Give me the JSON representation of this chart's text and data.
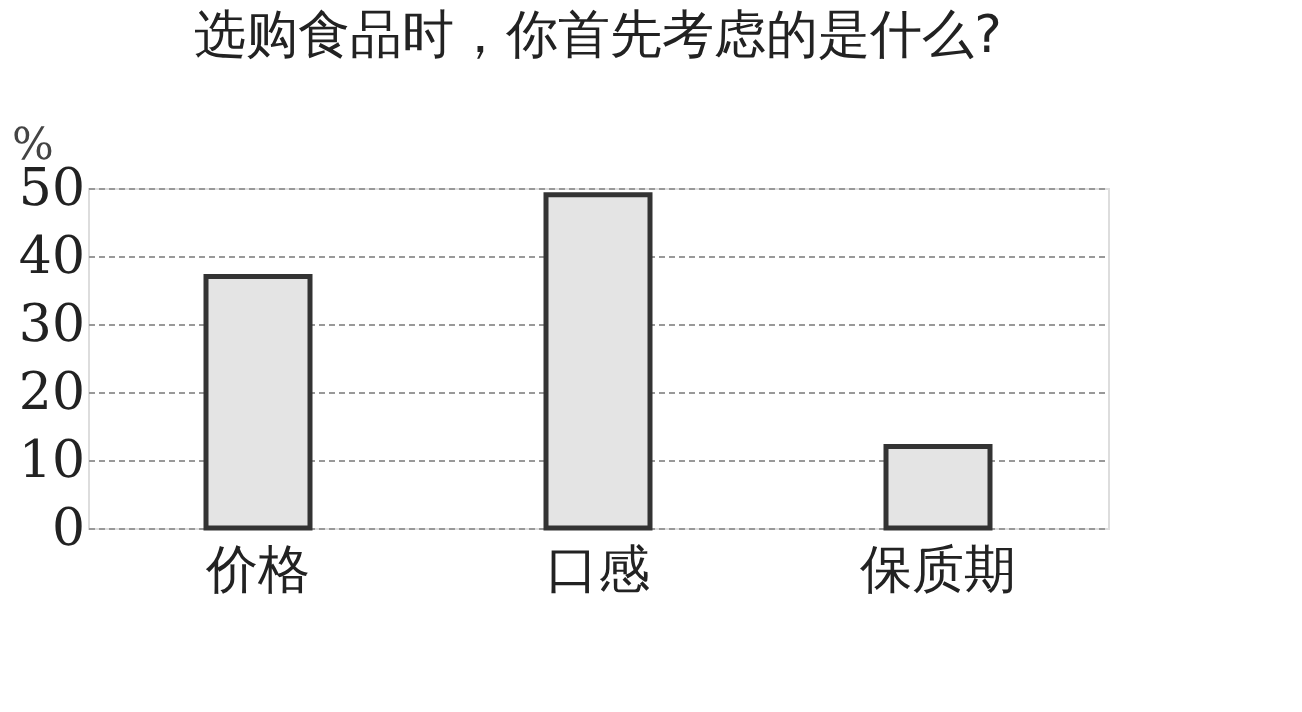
{
  "chart_data": {
    "type": "bar",
    "title": "选购食品时，你首先考虑的是什么?",
    "ylabel": "%",
    "categories": [
      "价格",
      "口感",
      "保质期"
    ],
    "values": [
      37,
      49,
      12
    ],
    "color": "#e4e4e4",
    "ylim": [
      0,
      50
    ],
    "yticks": [
      0,
      10,
      20,
      30,
      40,
      50
    ],
    "grid": "y"
  }
}
